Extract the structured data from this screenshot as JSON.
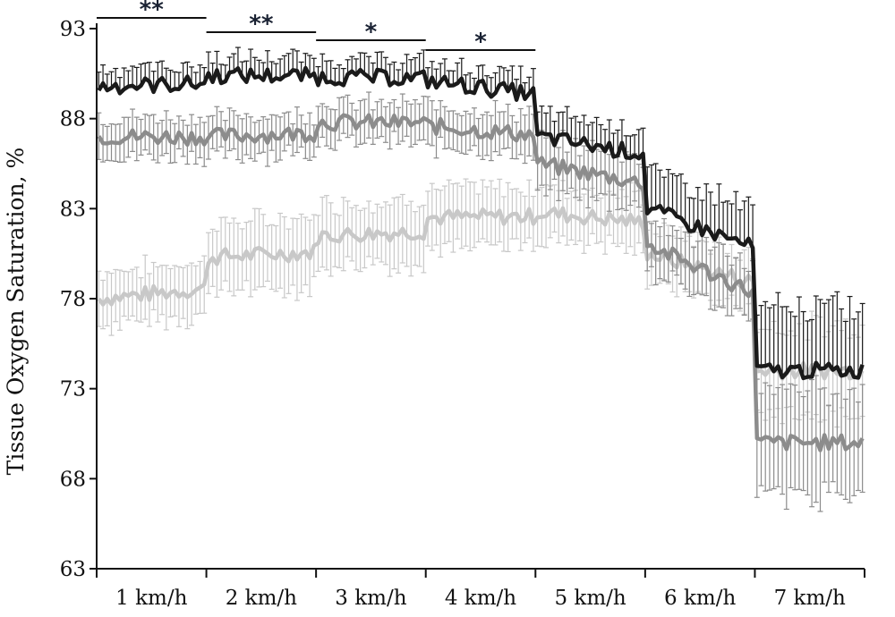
{
  "chart_data": {
    "type": "line",
    "title": "",
    "xlabel": "",
    "ylabel": "Tissue Oxygen Saturation, %",
    "ylim": [
      63,
      93
    ],
    "yticks": [
      63,
      68,
      73,
      78,
      83,
      88,
      93
    ],
    "categories": [
      "1 km/h",
      "2 km/h",
      "3 km/h",
      "4 km/h",
      "5 km/h",
      "6 km/h",
      "7 km/h"
    ],
    "x": [
      1,
      2,
      3,
      4,
      5,
      6,
      7
    ],
    "series": [
      {
        "color": "#1a1a1a",
        "values": [
          89.8,
          90.4,
          90.3,
          90.1,
          87.0,
          83.0,
          74.0
        ],
        "error": [
          1.0,
          1.0,
          1.0,
          1.0,
          1.4,
          2.2,
          3.5
        ]
      },
      {
        "color": "#8c8c8c",
        "values": [
          87.0,
          87.0,
          87.8,
          87.6,
          85.5,
          81.0,
          70.0
        ],
        "error": [
          1.1,
          1.1,
          1.1,
          1.2,
          1.4,
          1.5,
          3.0
        ]
      },
      {
        "color": "#c8c8c8",
        "values": [
          78.0,
          80.3,
          81.5,
          82.5,
          82.8,
          80.5,
          74.0
        ],
        "error": [
          1.5,
          1.9,
          1.8,
          1.6,
          1.5,
          1.5,
          2.5
        ]
      }
    ],
    "significance": [
      {
        "label": "**",
        "from": 1,
        "to": 2
      },
      {
        "label": "**",
        "from": 2,
        "to": 3
      },
      {
        "label": "*",
        "from": 3,
        "to": 4
      },
      {
        "label": "*",
        "from": 4,
        "to": 5
      }
    ],
    "grid": false,
    "legend": "none"
  }
}
